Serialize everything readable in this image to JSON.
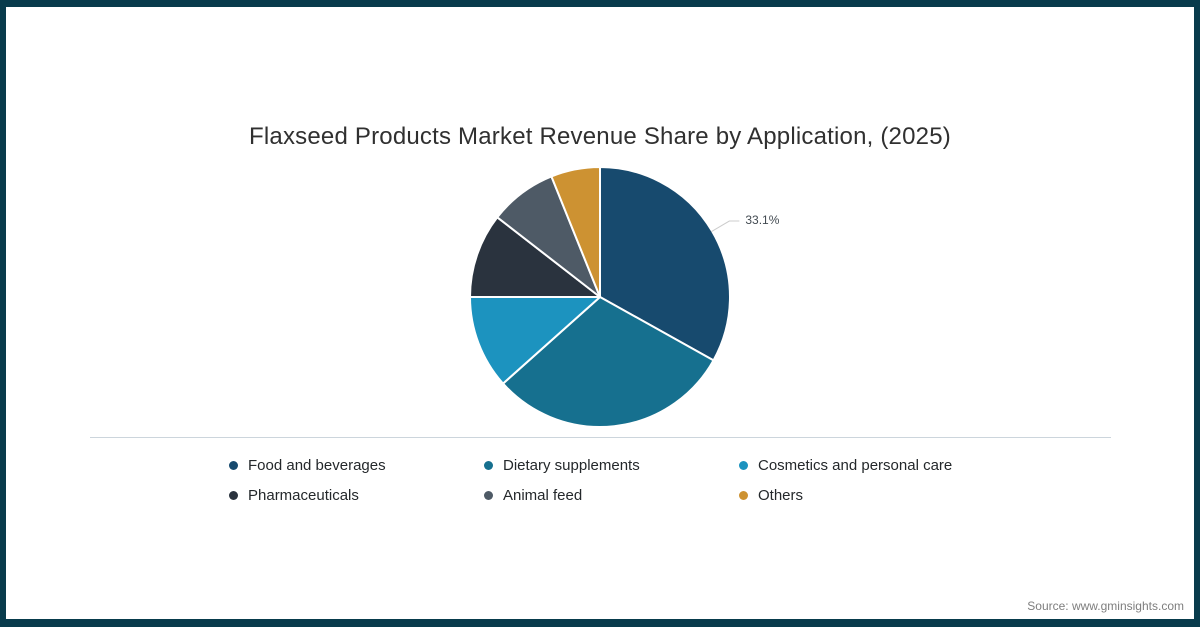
{
  "chart": {
    "title": "Flaxseed Products Market Revenue Share by Application, (2025)"
  },
  "chart_data": {
    "type": "pie",
    "title": "Flaxseed Products Market Revenue Share by Application, (2025)",
    "categories": [
      "Food and beverages",
      "Dietary supplements",
      "Cosmetics and personal care",
      "Pharmaceuticals",
      "Animal feed",
      "Others"
    ],
    "values": [
      33.1,
      30.3,
      11.6,
      10.5,
      8.4,
      6.1
    ],
    "unit": "%",
    "colors": [
      "#174a6e",
      "#16708f",
      "#1c93bf",
      "#2a333e",
      "#4e5a66",
      "#cd9232"
    ],
    "start_angle_deg": 0,
    "direction": "clockwise",
    "legend_position": "bottom",
    "data_label": {
      "text": "33.1%",
      "slice_index": 0
    },
    "label_color": "#424a51",
    "connector_color": "#cccccc"
  },
  "footer": {
    "source": "Source: www.gminsights.com"
  }
}
